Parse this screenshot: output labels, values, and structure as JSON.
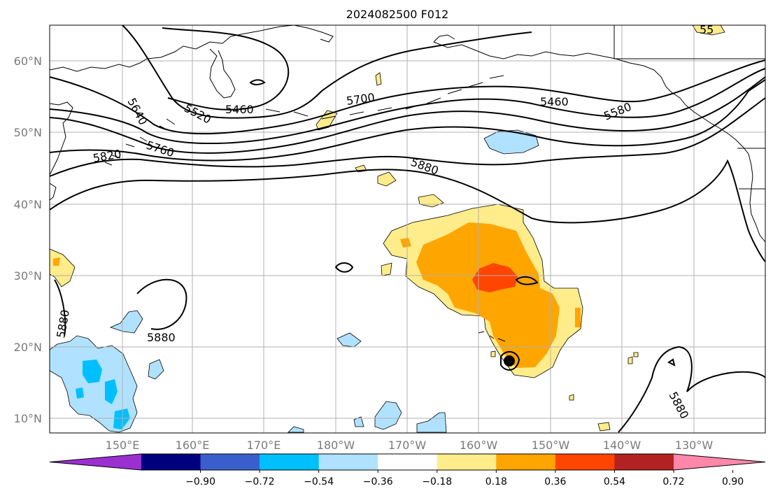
{
  "title": "2024082500 F012",
  "lat_labels": [
    "60°N",
    "50°N",
    "40°N",
    "30°N",
    "20°N",
    "10°N"
  ],
  "lon_labels": [
    "150°E",
    "160°E",
    "170°E",
    "180°W",
    "170°W",
    "160°W",
    "150°W",
    "140°W",
    "130°W"
  ],
  "contour_labels": [
    "5640",
    "5520",
    "5460",
    "5700",
    "5460",
    "5580",
    "5820",
    "5760",
    "5880",
    "5880",
    "5880",
    "5880",
    "55"
  ],
  "colorbar": {
    "ticks": [
      "−0.90",
      "−0.72",
      "−0.54",
      "−0.36",
      "−0.18",
      "0.18",
      "0.36",
      "0.54",
      "0.72",
      "0.90"
    ],
    "colors": [
      "#9b30d0",
      "#00007f",
      "#3a5fcd",
      "#00bfff",
      "#b0e2ff",
      "#ffffff",
      "#ffec8b",
      "#ffa500",
      "#ff4500",
      "#b22222",
      "#ff88aa"
    ]
  },
  "colors": {
    "pos1": "#ffec8b",
    "pos2": "#ffa500",
    "pos3": "#ff4500",
    "neg1": "#b0e2ff",
    "neg2": "#00bfff"
  }
}
